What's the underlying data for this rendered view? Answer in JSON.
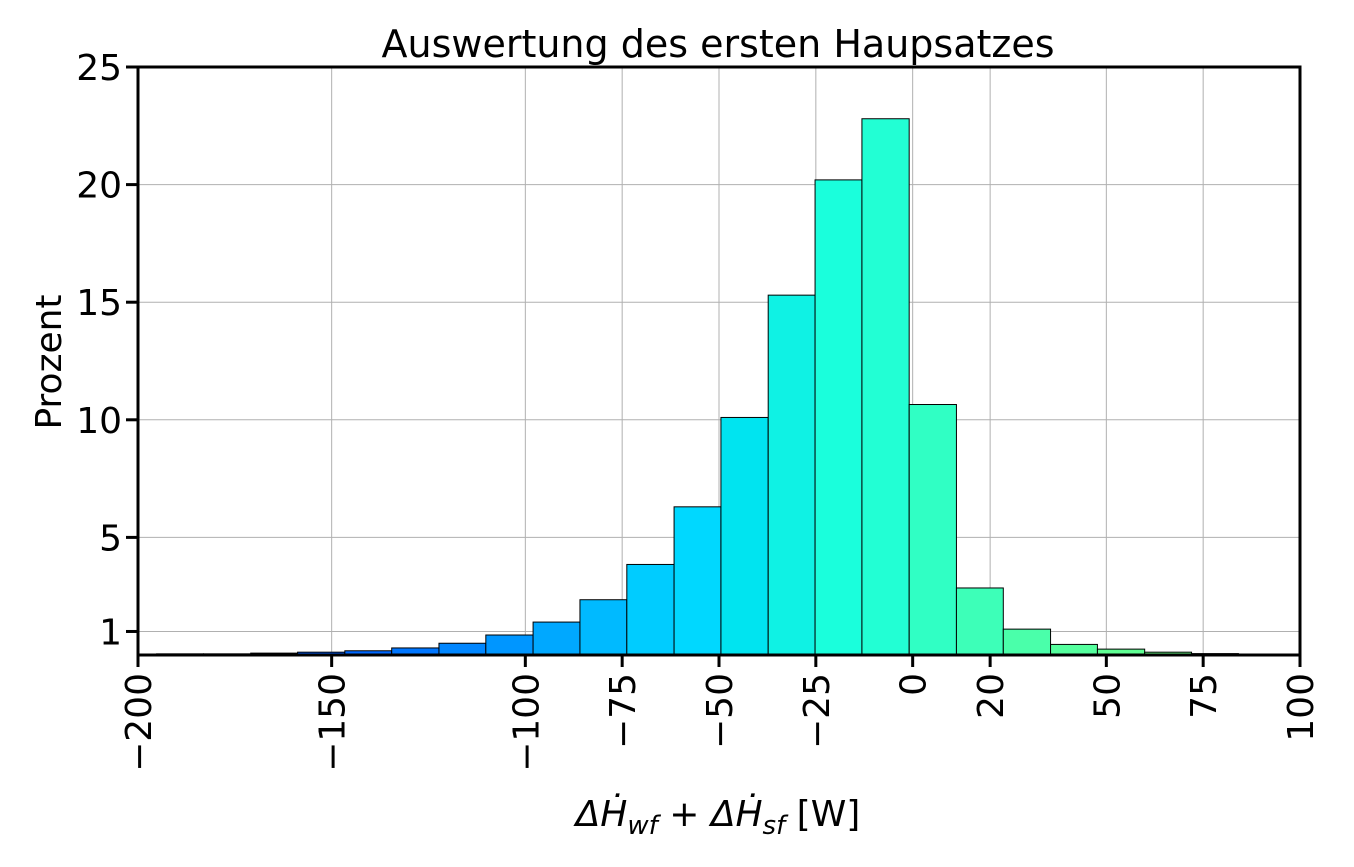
{
  "chart_data": {
    "type": "bar",
    "title": "Auswertung des ersten Haupsatzes",
    "ylabel": "Prozent",
    "xlabel": "ΔḢ_wf + ΔḢ_sf [W]",
    "xlim": [
      -200,
      100
    ],
    "ylim": [
      0,
      25
    ],
    "grid": true,
    "x_ticks": [
      -200,
      -150,
      -100,
      -75,
      -50,
      -25,
      0,
      20,
      50,
      75,
      100
    ],
    "x_tick_labels": [
      "−200",
      "−150",
      "−100",
      "−75",
      "−50",
      "−25",
      "0",
      "20",
      "50",
      "75",
      "100"
    ],
    "y_ticks": [
      1,
      5,
      10,
      15,
      20,
      25
    ],
    "y_tick_labels": [
      "1",
      "5",
      "10",
      "15",
      "20",
      "25"
    ],
    "bins": [
      {
        "x0": -195.2,
        "x1": -183.1,
        "value": 0.05,
        "color": "#0040ff"
      },
      {
        "x0": -183.1,
        "x1": -170.9,
        "value": 0.05,
        "color": "#0048ff"
      },
      {
        "x0": -170.9,
        "x1": -158.8,
        "value": 0.08,
        "color": "#0052ff"
      },
      {
        "x0": -158.8,
        "x1": -146.6,
        "value": 0.12,
        "color": "#005cff"
      },
      {
        "x0": -146.6,
        "x1": -134.5,
        "value": 0.18,
        "color": "#0068ff"
      },
      {
        "x0": -134.5,
        "x1": -122.3,
        "value": 0.3,
        "color": "#0076ff"
      },
      {
        "x0": -122.3,
        "x1": -110.2,
        "value": 0.5,
        "color": "#0086ff"
      },
      {
        "x0": -110.2,
        "x1": -98.0,
        "value": 0.85,
        "color": "#0096ff"
      },
      {
        "x0": -98.0,
        "x1": -85.9,
        "value": 1.4,
        "color": "#00a8ff"
      },
      {
        "x0": -85.9,
        "x1": -73.8,
        "value": 2.35,
        "color": "#00baff"
      },
      {
        "x0": -73.8,
        "x1": -61.6,
        "value": 3.85,
        "color": "#00ccff"
      },
      {
        "x0": -61.6,
        "x1": -49.5,
        "value": 6.3,
        "color": "#00d8ff"
      },
      {
        "x0": -49.5,
        "x1": -37.3,
        "value": 10.1,
        "color": "#00e4f0"
      },
      {
        "x0": -37.3,
        "x1": -25.2,
        "value": 15.3,
        "color": "#0ff2e4"
      },
      {
        "x0": -25.2,
        "x1": -13.1,
        "value": 20.2,
        "color": "#1affdc"
      },
      {
        "x0": -13.1,
        "x1": -0.9,
        "value": 22.8,
        "color": "#22ffd4"
      },
      {
        "x0": -0.9,
        "x1": 11.3,
        "value": 10.65,
        "color": "#30ffc4"
      },
      {
        "x0": 11.3,
        "x1": 23.4,
        "value": 2.85,
        "color": "#3dffb8"
      },
      {
        "x0": 23.4,
        "x1": 35.6,
        "value": 1.1,
        "color": "#4affaa"
      },
      {
        "x0": 35.6,
        "x1": 47.7,
        "value": 0.45,
        "color": "#55ff9e"
      },
      {
        "x0": 47.7,
        "x1": 59.9,
        "value": 0.25,
        "color": "#60ff94"
      },
      {
        "x0": 59.9,
        "x1": 72.0,
        "value": 0.12,
        "color": "#6aff8a"
      },
      {
        "x0": 72.0,
        "x1": 84.1,
        "value": 0.06,
        "color": "#72ff82"
      }
    ]
  }
}
